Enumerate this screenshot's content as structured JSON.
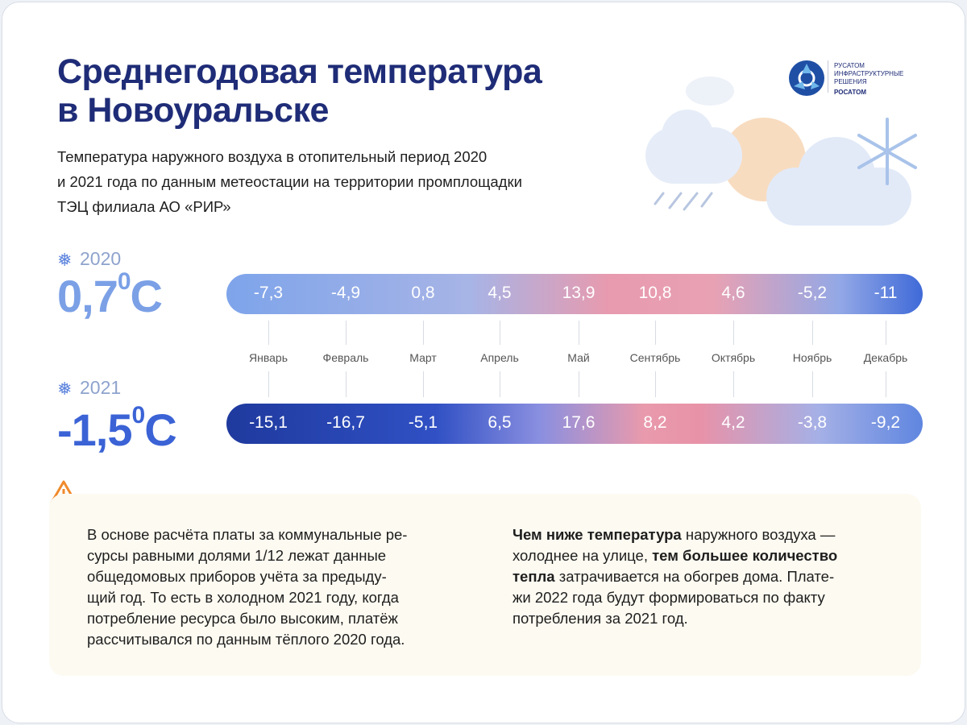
{
  "header": {
    "title": [
      "Среднегодовая температура",
      "в Новоуральске"
    ],
    "subtitle": [
      "Температура наружного воздуха в отопительный период 2020",
      "и 2021 года по данным метеостации на территории промплощадки",
      "ТЭЦ филиала АО «РИР»"
    ]
  },
  "logo": {
    "lines": [
      "РУСАТОМ",
      "ИНФРАСТРУКТУРНЫЕ",
      "РЕШЕНИЯ"
    ],
    "parent": "РОСАТОМ"
  },
  "months": [
    "Январь",
    "Февраль",
    "Март",
    "Апрель",
    "Май",
    "Сентябрь",
    "Октябрь",
    "Ноябрь",
    "Декабрь"
  ],
  "years": [
    {
      "year": "2020",
      "average": "0,7",
      "unit": "0C",
      "values": [
        "-7,3",
        "-4,9",
        "0,8",
        "4,5",
        "13,9",
        "10,8",
        "4,6",
        "-5,2",
        "-11"
      ]
    },
    {
      "year": "2021",
      "average": "-1,5",
      "unit": "0C",
      "values": [
        "-15,1",
        "-16,7",
        "-5,1",
        "6,5",
        "17,6",
        "8,2",
        "4,2",
        "-3,8",
        "-9,2"
      ]
    }
  ],
  "notes": {
    "left": [
      "В основе расчёта платы за коммунальные ре-",
      "сурсы равными долями 1/12 лежат данные",
      "общедомовых приборов учёта за предыду-",
      "щий год. То есть в холодном 2021 году, когда",
      "потребление ресурса было высоким, платёж",
      "рассчитывался по данным тёплого 2020 года."
    ],
    "right": [
      [
        {
          "text": "Чем ниже температура",
          "bold": true
        },
        {
          "text": " наружного воздуха —",
          "bold": false
        }
      ],
      [
        {
          "text": "холоднее на улице, ",
          "bold": false
        },
        {
          "text": "тем большее количество",
          "bold": true
        }
      ],
      [
        {
          "text": "тепла",
          "bold": true
        },
        {
          "text": " затрачивается на обогрев дома. Плате-",
          "bold": false
        }
      ],
      [
        {
          "text": "жи 2022 года будут формироваться по факту",
          "bold": false
        }
      ],
      [
        {
          "text": "потребления за 2021 год.",
          "bold": false
        }
      ]
    ]
  }
}
